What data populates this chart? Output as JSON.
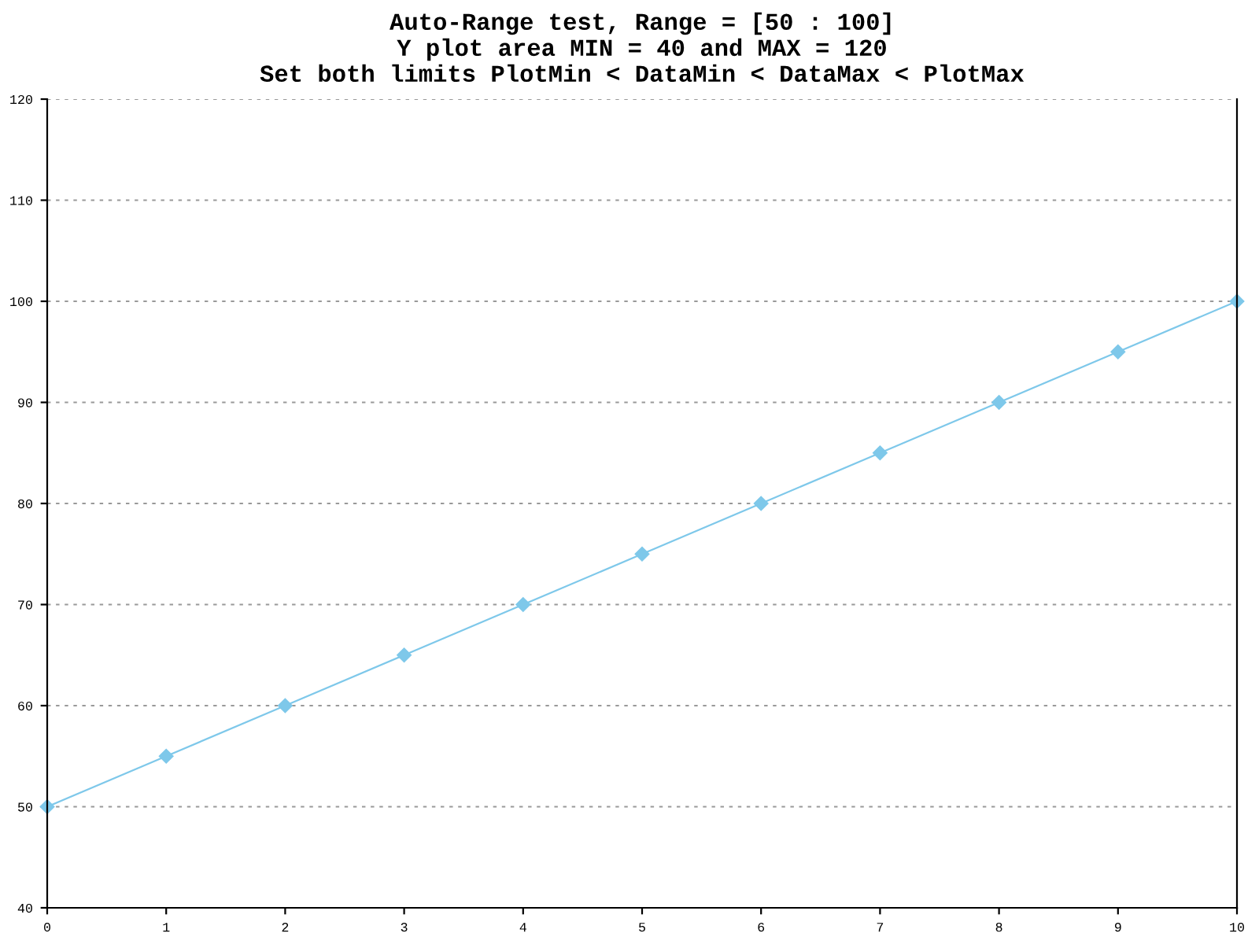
{
  "chart_data": {
    "type": "line",
    "title": "Auto-Range test, Range = [50 : 100]\nY plot area MIN = 40 and MAX = 120\nSet both limits PlotMin < DataMin < DataMax < PlotMax",
    "x": [
      0,
      1,
      2,
      3,
      4,
      5,
      6,
      7,
      8,
      9,
      10
    ],
    "series": [
      {
        "color": "#7ec8ea",
        "values": [
          50,
          55,
          60,
          65,
          70,
          75,
          80,
          85,
          90,
          95,
          100
        ]
      }
    ],
    "xlim": [
      0,
      10
    ],
    "xticks": [
      0,
      1,
      2,
      3,
      4,
      5,
      6,
      7,
      8,
      9,
      10
    ],
    "ylim": [
      40,
      120
    ],
    "yticks": [
      40,
      50,
      60,
      70,
      80,
      90,
      100,
      110,
      120
    ],
    "grid": "y",
    "marker": "diamond",
    "line_style": "solid"
  }
}
